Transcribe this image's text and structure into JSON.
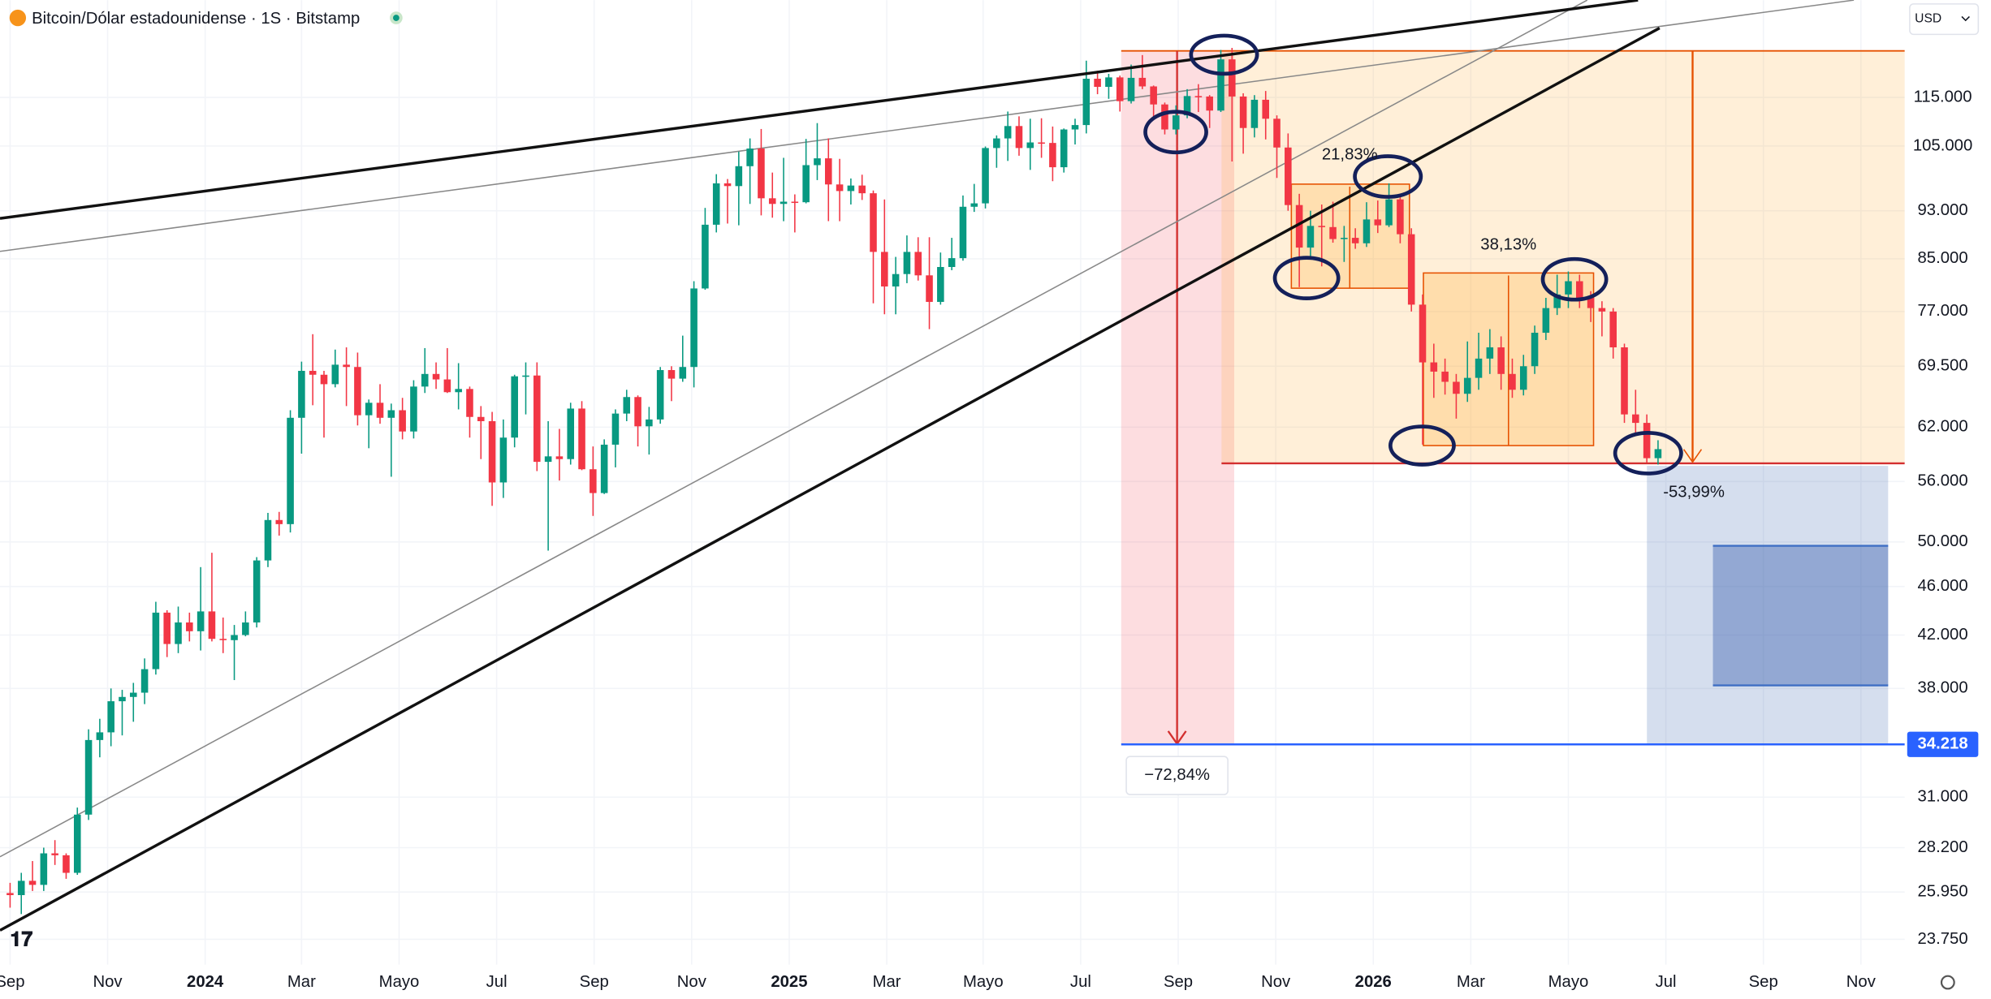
{
  "chart_data": {
    "type": "candlestick",
    "title": "Bitcoin/Dólar estadounidense · 1S · Bitstamp",
    "currency": "USD",
    "log_scale": true,
    "grid": true,
    "up_color": "#089981",
    "down_color": "#f23645",
    "open": [
      25900,
      25800,
      26500,
      26300,
      27900,
      27800,
      26900,
      30000,
      34500,
      35000,
      37100,
      37400,
      37700,
      39400,
      43800,
      41300,
      43000,
      42300,
      43900,
      41700,
      41600,
      42000,
      43000,
      48300,
      52100,
      51700,
      63100,
      68900,
      68400,
      67200,
      69700,
      69400,
      63400,
      64900,
      63100,
      64000,
      61500,
      66900,
      68500,
      67800,
      66200,
      66600,
      63200,
      62700,
      55900,
      60800,
      68200,
      68300,
      58100,
      58700,
      58400,
      64200,
      57300,
      54800,
      60000,
      63600,
      65600,
      62100,
      62900,
      69000,
      67900,
      69400,
      80400,
      90600,
      97900,
      97400,
      101100,
      104500,
      95200,
      94200,
      94600,
      94500,
      101300,
      102600,
      97700,
      96500,
      97500,
      96100,
      86100,
      80700,
      82600,
      86100,
      82400,
      78400,
      83700,
      85100,
      93700,
      94300,
      104600,
      106500,
      109000,
      104600,
      105700,
      105600,
      100900,
      108300,
      109200,
      119100,
      117300,
      119400,
      114200,
      119300,
      117400,
      113500,
      108300,
      111200,
      115300,
      115200,
      112200,
      123500,
      115200,
      108600,
      114500,
      110500,
      104700,
      94000,
      86800,
      90400,
      90200,
      88200,
      88400,
      87500,
      91500,
      90500,
      95000,
      89000,
      78000,
      70000,
      68800,
      67500,
      66000,
      68000,
      70500,
      72000,
      68500,
      66500,
      69500,
      74000,
      77500,
      79500,
      81500,
      79000,
      77500,
      77000,
      72000,
      63500,
      62500,
      58500
    ],
    "high": [
      26400,
      26900,
      27500,
      28200,
      28600,
      27900,
      30400,
      35200,
      35900,
      38000,
      37900,
      38400,
      40200,
      44700,
      44000,
      44300,
      43800,
      47700,
      49000,
      43400,
      42800,
      43900,
      48600,
      52800,
      52900,
      64000,
      70100,
      73800,
      68900,
      71700,
      72000,
      71300,
      65300,
      67200,
      64800,
      65500,
      67700,
      71900,
      70000,
      71900,
      69900,
      66900,
      64500,
      63800,
      62900,
      68400,
      70000,
      70000,
      62700,
      61800,
      64900,
      65100,
      59800,
      60600,
      64100,
      66500,
      65800,
      64400,
      69400,
      69500,
      73600,
      81500,
      93500,
      99600,
      98700,
      103900,
      106500,
      108400,
      99900,
      102700,
      95900,
      106400,
      109600,
      106500,
      102500,
      98800,
      99500,
      96600,
      95000,
      85300,
      88800,
      88500,
      88500,
      86000,
      88400,
      95700,
      97800,
      104900,
      107100,
      112000,
      111000,
      110500,
      110600,
      108900,
      108500,
      110500,
      123200,
      120900,
      120200,
      119800,
      122300,
      124500,
      117600,
      113900,
      113300,
      116800,
      117900,
      115500,
      125700,
      126200,
      115900,
      115500,
      116400,
      111200,
      107500,
      96000,
      93000,
      94100,
      94600,
      90400,
      90000,
      94500,
      94800,
      97900,
      96000,
      90000,
      79500,
      72500,
      70500,
      68500,
      72800,
      74000,
      74500,
      73500,
      70500,
      71000,
      75000,
      79000,
      82500,
      83000,
      82500,
      80000,
      78500,
      77500,
      72500,
      66500,
      63500,
      60500
    ],
    "low": [
      25200,
      24900,
      26000,
      26000,
      27300,
      26600,
      26800,
      29700,
      33400,
      34100,
      34800,
      35700,
      36900,
      39000,
      40300,
      40600,
      41500,
      40800,
      41500,
      40600,
      38600,
      41900,
      42600,
      47700,
      50600,
      50900,
      59000,
      64600,
      60800,
      66800,
      64500,
      62200,
      59600,
      62400,
      56500,
      60600,
      60700,
      66100,
      66600,
      66100,
      64100,
      60800,
      58400,
      53500,
      54300,
      59700,
      63500,
      57100,
      49200,
      56100,
      57800,
      57200,
      52500,
      54700,
      57500,
      62700,
      59800,
      58900,
      62400,
      65100,
      67500,
      66800,
      80200,
      89300,
      90800,
      90500,
      94200,
      92200,
      91800,
      91200,
      89300,
      94300,
      98500,
      91200,
      91200,
      94100,
      94900,
      78200,
      76600,
      76600,
      81200,
      81600,
      74500,
      78000,
      83200,
      84700,
      92800,
      93400,
      100800,
      102100,
      103100,
      100400,
      102700,
      98300,
      99900,
      105300,
      107500,
      115700,
      114700,
      112000,
      113700,
      116800,
      110700,
      107300,
      107300,
      110600,
      111900,
      108600,
      111900,
      102000,
      103500,
      106700,
      106300,
      98900,
      93000,
      80600,
      85300,
      83800,
      87600,
      84500,
      86600,
      86900,
      89200,
      90200,
      87500,
      77000,
      60000,
      65500,
      65900,
      63000,
      65000,
      66500,
      68500,
      66500,
      65500,
      65800,
      68500,
      73000,
      76500,
      77500,
      77500,
      75500,
      73500,
      70500,
      62500,
      61000,
      58000,
      57800
    ],
    "close": [
      25800,
      26500,
      26300,
      27900,
      27800,
      26900,
      30000,
      34500,
      35000,
      37100,
      37400,
      37700,
      39400,
      43800,
      41300,
      43000,
      42300,
      43900,
      41700,
      41600,
      42000,
      43000,
      48300,
      52100,
      51700,
      63100,
      68900,
      68400,
      67200,
      69700,
      69400,
      63400,
      64900,
      63100,
      64000,
      61500,
      66900,
      68500,
      67800,
      66200,
      66600,
      63200,
      62700,
      55900,
      60800,
      68200,
      68300,
      58100,
      58700,
      58400,
      64200,
      57300,
      54800,
      60000,
      63600,
      65600,
      62100,
      62900,
      69000,
      67900,
      69400,
      80400,
      90600,
      97900,
      97400,
      101100,
      104500,
      95200,
      94200,
      94600,
      94500,
      101300,
      102600,
      97700,
      96500,
      97500,
      96100,
      86100,
      80700,
      82600,
      86100,
      82400,
      78400,
      83700,
      85100,
      93700,
      94300,
      104600,
      106500,
      109000,
      104600,
      105700,
      105600,
      100900,
      108300,
      109200,
      119100,
      117300,
      119400,
      114200,
      119300,
      117400,
      113500,
      108300,
      111200,
      115300,
      115200,
      112200,
      123500,
      115200,
      108600,
      114500,
      110500,
      104700,
      94000,
      86800,
      90400,
      90200,
      88200,
      88400,
      87500,
      91500,
      90500,
      95000,
      89000,
      78000,
      70000,
      68800,
      67500,
      66000,
      68000,
      70500,
      72000,
      68500,
      66500,
      69500,
      74000,
      77500,
      79500,
      81500,
      79000,
      77500,
      77000,
      72000,
      63500,
      62500,
      58500,
      59500
    ],
    "xlim": [
      -0.9,
      169
    ],
    "xticks": [
      {
        "value": 0,
        "label": "Sep"
      },
      {
        "value": 8.7,
        "label": "Nov"
      },
      {
        "value": 17.4,
        "label": "2024"
      },
      {
        "value": 26,
        "label": "Mar"
      },
      {
        "value": 34.7,
        "label": "Mayo"
      },
      {
        "value": 43.4,
        "label": "Jul"
      },
      {
        "value": 52.1,
        "label": "Sep"
      },
      {
        "value": 60.8,
        "label": "Nov"
      },
      {
        "value": 69.5,
        "label": "2025"
      },
      {
        "value": 78.2,
        "label": "Mar"
      },
      {
        "value": 86.8,
        "label": "Mayo"
      },
      {
        "value": 95.5,
        "label": "Jul"
      },
      {
        "value": 104.2,
        "label": "Sep"
      },
      {
        "value": 112.9,
        "label": "Nov"
      },
      {
        "value": 121.6,
        "label": "2026"
      },
      {
        "value": 130.3,
        "label": "Mar"
      },
      {
        "value": 139,
        "label": "Mayo"
      },
      {
        "value": 147.7,
        "label": "Jul"
      },
      {
        "value": 156.4,
        "label": "Sep"
      },
      {
        "value": 165.1,
        "label": "Nov"
      }
    ],
    "ylim": [
      22650,
      138000
    ],
    "yticks": [
      {
        "value": 23750,
        "label": "23.750"
      },
      {
        "value": 25950,
        "label": "25.950"
      },
      {
        "value": 28200,
        "label": "28.200"
      },
      {
        "value": 31000,
        "label": "31.000"
      },
      {
        "value": 38000,
        "label": "38.000"
      },
      {
        "value": 42000,
        "label": "42.000"
      },
      {
        "value": 46000,
        "label": "46.000"
      },
      {
        "value": 50000,
        "label": "50.000"
      },
      {
        "value": 56000,
        "label": "56.000"
      },
      {
        "value": 62000,
        "label": "62.000"
      },
      {
        "value": 69500,
        "label": "69.500"
      },
      {
        "value": 77000,
        "label": "77.000"
      },
      {
        "value": 85000,
        "label": "85.000"
      },
      {
        "value": 93000,
        "label": "93.000"
      },
      {
        "value": 105000,
        "label": "105.000"
      },
      {
        "value": 115000,
        "label": "115.000"
      }
    ],
    "price_line": {
      "value": 34218,
      "label": "34.218"
    },
    "annotations": [
      "21,83%",
      "38,13%",
      "-53,99%",
      "−72,84%"
    ]
  }
}
